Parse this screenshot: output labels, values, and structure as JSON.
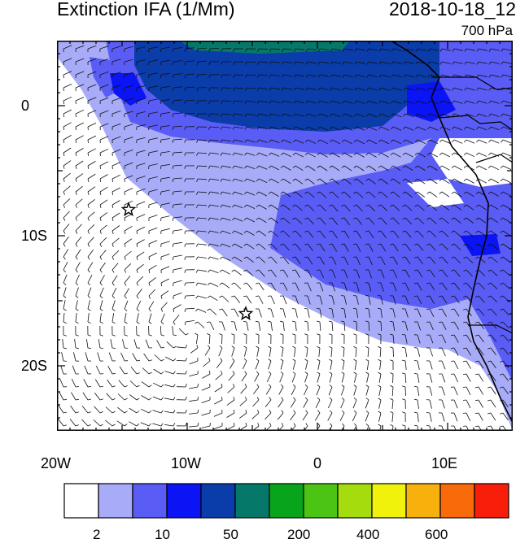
{
  "header": {
    "title": "Extinction IFA (1/Mm)",
    "datetime": "2018-10-18_12",
    "level": "700 hPa"
  },
  "map": {
    "lon_labels": [
      "20W",
      "10W",
      "0",
      "10E"
    ],
    "lat_labels": [
      "0",
      "10S",
      "20S"
    ],
    "lon_range": [
      -20,
      15
    ],
    "lat_range": [
      -25,
      5
    ],
    "markers": [
      {
        "name": "star-marker",
        "lon": -14.5,
        "lat": -8.0
      },
      {
        "name": "star-marker",
        "lon": -5.5,
        "lat": -16.0
      }
    ]
  },
  "colorbar": {
    "colors": [
      "#ffffff",
      "#a8acf8",
      "#5a5cf6",
      "#0a14f4",
      "#0a3caa",
      "#06786a",
      "#08a51c",
      "#4cc414",
      "#a4dc0e",
      "#f0f20c",
      "#f8b00c",
      "#f86a0a",
      "#f81e0a"
    ],
    "labels": [
      "2",
      "10",
      "50",
      "200",
      "400",
      "600"
    ]
  }
}
